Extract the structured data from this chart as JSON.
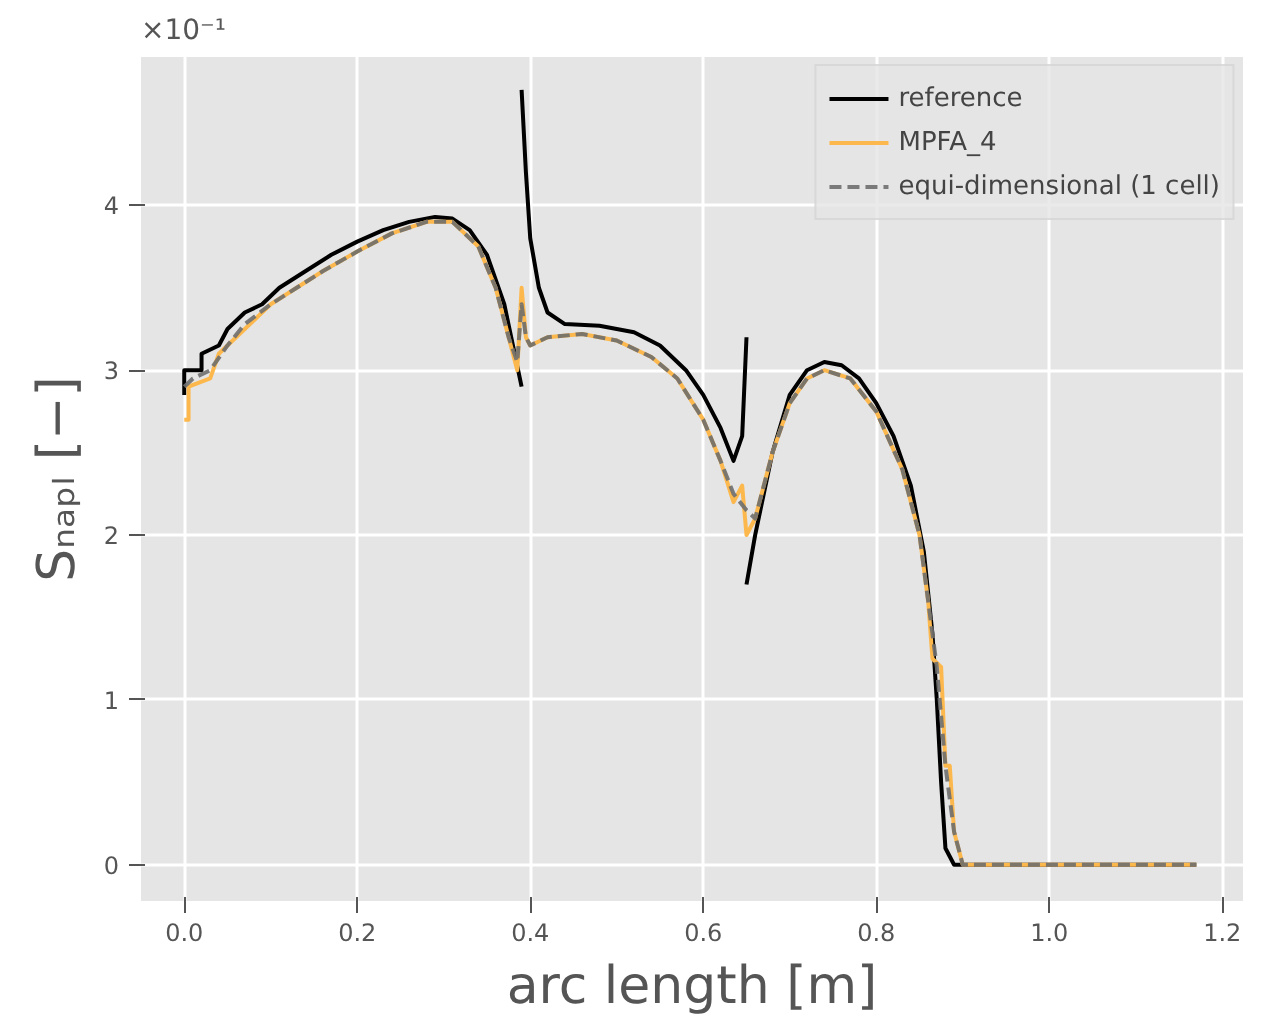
{
  "chart_data": {
    "type": "line",
    "xlabel": "arc length [m]",
    "ylabel": "Sₙₐₚₗ [−]",
    "annotations": [
      "×10⁻¹"
    ],
    "xlim": [
      -0.05,
      1.224
    ],
    "ylim": [
      -0.22,
      4.9
    ],
    "xticks": [
      {
        "value": 0,
        "label": "0.0"
      },
      {
        "value": 0.2,
        "label": "0.2"
      },
      {
        "value": 0.4,
        "label": "0.4"
      },
      {
        "value": 0.6,
        "label": "0.6"
      },
      {
        "value": 0.8,
        "label": "0.8"
      },
      {
        "value": 1.0,
        "label": "1.0"
      },
      {
        "value": 1.2,
        "label": "1.2"
      }
    ],
    "yticks": [
      0,
      1,
      2,
      3,
      4
    ],
    "grid": true,
    "legend": "top right",
    "marker": "none",
    "series": [
      {
        "name": "reference",
        "color": "#000000",
        "line_style": "solid",
        "x": [
          0,
          0,
          0.02,
          0.02,
          0.04,
          0.05,
          0.07,
          0.09,
          0.11,
          0.14,
          0.17,
          0.2,
          0.23,
          0.26,
          0.29,
          0.31,
          0.33,
          0.35,
          0.37,
          0.38,
          0.39,
          null,
          0.39,
          0.395,
          0.4,
          0.41,
          0.42,
          0.44,
          0.48,
          0.52,
          0.55,
          0.58,
          0.6,
          0.62,
          0.635,
          0.645,
          0.65,
          null,
          0.65,
          0.66,
          0.68,
          0.7,
          0.72,
          0.74,
          0.76,
          0.78,
          0.8,
          0.82,
          0.84,
          0.855,
          0.865,
          0.87,
          0.875,
          0.88,
          0.89,
          1.17
        ],
        "values": [
          2.85,
          3.0,
          3.0,
          3.1,
          3.15,
          3.25,
          3.35,
          3.4,
          3.5,
          3.6,
          3.7,
          3.78,
          3.85,
          3.9,
          3.93,
          3.92,
          3.85,
          3.7,
          3.4,
          3.15,
          2.9,
          null,
          4.7,
          4.2,
          3.8,
          3.5,
          3.35,
          3.28,
          3.27,
          3.23,
          3.15,
          3.0,
          2.85,
          2.65,
          2.45,
          2.6,
          3.2,
          null,
          1.7,
          2.0,
          2.5,
          2.85,
          3.0,
          3.05,
          3.03,
          2.95,
          2.8,
          2.6,
          2.3,
          1.9,
          1.4,
          1.0,
          0.5,
          0.1,
          0,
          0
        ]
      },
      {
        "name": "MPFA_4",
        "color": "#fdb84d",
        "line_style": "solid",
        "x": [
          0,
          0.005,
          0.005,
          0.03,
          0.04,
          0.06,
          0.08,
          0.1,
          0.13,
          0.16,
          0.2,
          0.24,
          0.28,
          0.31,
          0.34,
          0.36,
          0.375,
          0.385,
          0.39,
          0.395,
          0.4,
          0.42,
          0.46,
          0.5,
          0.54,
          0.57,
          0.6,
          0.62,
          0.635,
          0.645,
          0.65,
          0.66,
          0.68,
          0.7,
          0.72,
          0.74,
          0.77,
          0.8,
          0.83,
          0.85,
          0.86,
          0.865,
          0.875,
          0.88,
          0.885,
          0.89,
          0.9,
          1.17
        ],
        "values": [
          2.7,
          2.7,
          2.9,
          2.95,
          3.1,
          3.2,
          3.3,
          3.4,
          3.5,
          3.6,
          3.72,
          3.83,
          3.9,
          3.9,
          3.75,
          3.5,
          3.2,
          3.0,
          3.5,
          3.2,
          3.15,
          3.2,
          3.22,
          3.18,
          3.08,
          2.95,
          2.7,
          2.45,
          2.2,
          2.3,
          2.0,
          2.1,
          2.5,
          2.8,
          2.95,
          3.0,
          2.95,
          2.75,
          2.4,
          2.0,
          1.6,
          1.25,
          1.2,
          0.6,
          0.6,
          0.2,
          0,
          0
        ]
      },
      {
        "name": "equi-dimensional (1 cell)",
        "color": "#6e6e6e",
        "line_style": "dashed",
        "x": [
          0,
          0.01,
          0.03,
          0.05,
          0.07,
          0.1,
          0.13,
          0.16,
          0.2,
          0.24,
          0.28,
          0.31,
          0.34,
          0.36,
          0.375,
          0.385,
          0.39,
          0.395,
          0.4,
          0.42,
          0.46,
          0.5,
          0.54,
          0.57,
          0.6,
          0.62,
          0.635,
          0.65,
          0.66,
          0.68,
          0.7,
          0.72,
          0.74,
          0.77,
          0.8,
          0.83,
          0.85,
          0.86,
          0.87,
          0.88,
          0.89,
          0.9,
          1.17
        ],
        "values": [
          2.9,
          2.95,
          3.0,
          3.15,
          3.28,
          3.4,
          3.5,
          3.6,
          3.72,
          3.83,
          3.9,
          3.9,
          3.75,
          3.5,
          3.2,
          3.05,
          3.4,
          3.2,
          3.15,
          3.2,
          3.22,
          3.18,
          3.08,
          2.95,
          2.7,
          2.45,
          2.25,
          2.15,
          2.1,
          2.5,
          2.8,
          2.95,
          3.0,
          2.95,
          2.75,
          2.4,
          2.0,
          1.6,
          1.2,
          0.6,
          0.2,
          0,
          0
        ]
      }
    ]
  }
}
